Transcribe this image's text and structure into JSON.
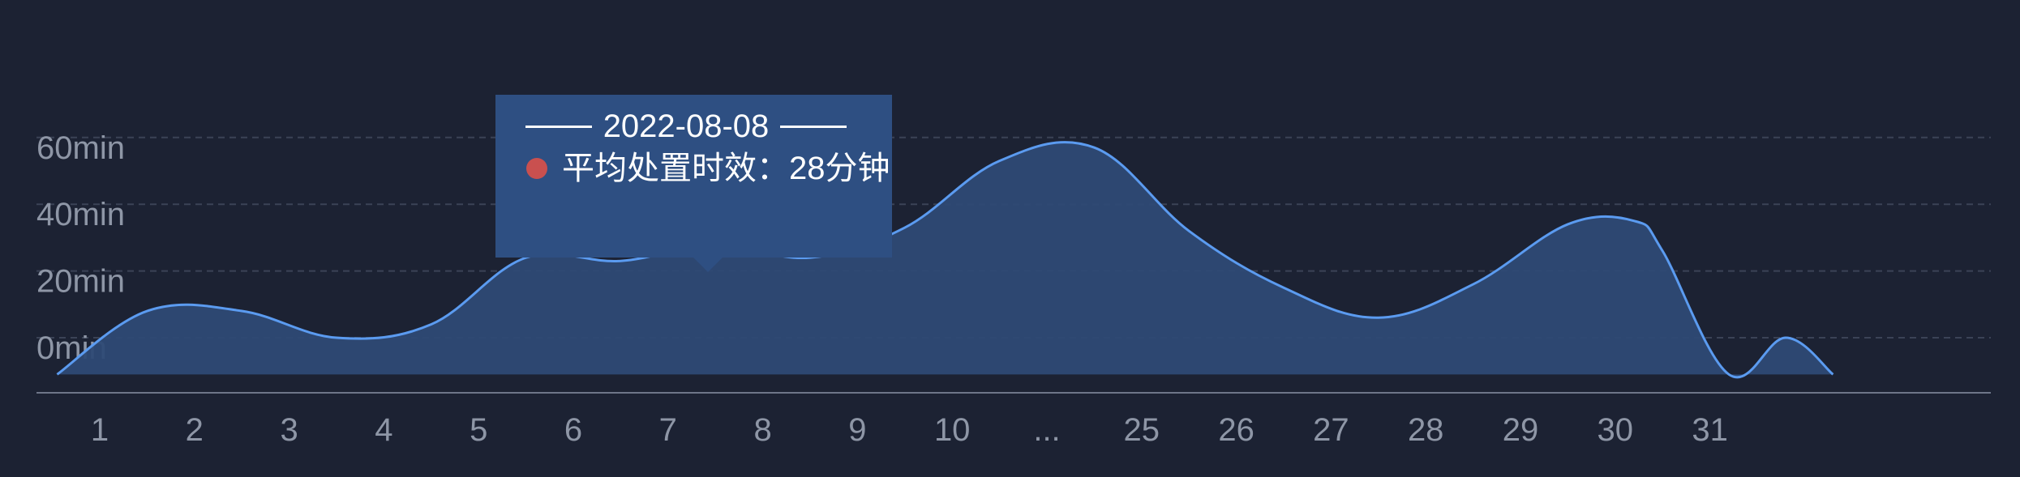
{
  "colors": {
    "background": "#1c2233",
    "line": "#5b9bf0",
    "area": "#2e4a75",
    "grid": "#3b4356",
    "tick_text": "#8e96a6",
    "tooltip_bg": "#2e4f82",
    "tooltip_marker": "#c9504f"
  },
  "tooltip": {
    "date": "2022-08-08",
    "label": "平均处置时效：28分钟",
    "marker_color": "#c9504f"
  },
  "chart_data": {
    "type": "area",
    "title": "",
    "xlabel": "",
    "ylabel": "",
    "categories": [
      "1",
      "2",
      "3",
      "4",
      "5",
      "6",
      "7",
      "8",
      "9",
      "10",
      "...",
      "25",
      "26",
      "27",
      "28",
      "29",
      "30",
      "31"
    ],
    "y_ticks": [
      {
        "value": 0,
        "label": "0min"
      },
      {
        "value": 20,
        "label": "20min"
      },
      {
        "value": 40,
        "label": "40min"
      },
      {
        "value": 60,
        "label": "60min"
      }
    ],
    "ylim": [
      -11,
      75
    ],
    "grid": true,
    "series": [
      {
        "x": [
          0.55,
          1.5,
          2.5,
          3.5,
          4.5,
          5.5,
          6.5,
          7.5,
          8.5,
          9.5,
          10.5,
          11.5,
          12.5,
          13.5,
          14.5,
          15.5,
          16.5,
          17.2,
          17.5,
          18.2,
          18.8,
          19.3
        ],
        "values": [
          -11,
          8,
          8,
          0,
          4,
          24,
          23,
          28,
          24,
          33,
          53,
          57,
          32,
          15,
          6,
          16,
          34,
          35,
          26,
          -11,
          0,
          -11
        ]
      }
    ],
    "highlight": {
      "x": 7.5,
      "value": 28
    }
  }
}
